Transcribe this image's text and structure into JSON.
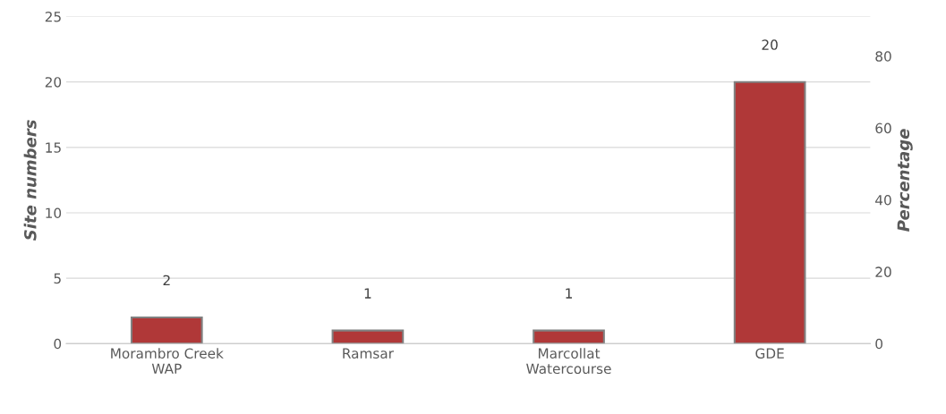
{
  "chart_data": {
    "type": "bar",
    "categories": [
      "Morambro Creek\nWAP",
      "Ramsar",
      "Marcollat\nWatercourse",
      "GDE"
    ],
    "values": [
      2,
      1,
      1,
      20
    ],
    "color": "#b03838",
    "ylabel": "Site numbers",
    "y2label": "Percentage",
    "ylim": [
      0,
      25
    ],
    "yticks": [
      0,
      5,
      10,
      15,
      20,
      25
    ],
    "y2lim": [
      0,
      91
    ],
    "y2ticks": [
      0,
      20,
      40,
      60,
      80
    ],
    "grid": "y",
    "data_labels": true
  }
}
